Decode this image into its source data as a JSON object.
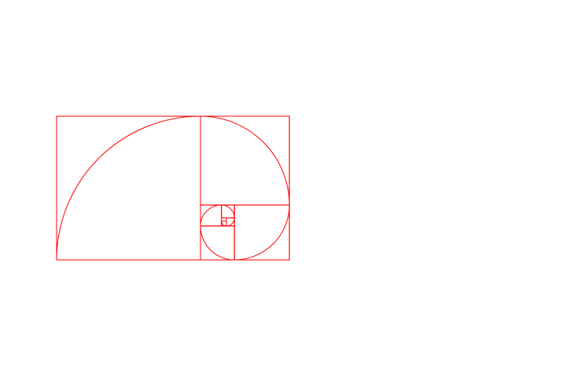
{
  "diagram": {
    "type": "golden-spiral",
    "stroke_color": "#ff0000",
    "background_color": "#ffffff",
    "outer_rectangle": true,
    "subdivision_squares": 8,
    "spiral_arcs": 8,
    "turn_direction": "clockwise-inward"
  }
}
